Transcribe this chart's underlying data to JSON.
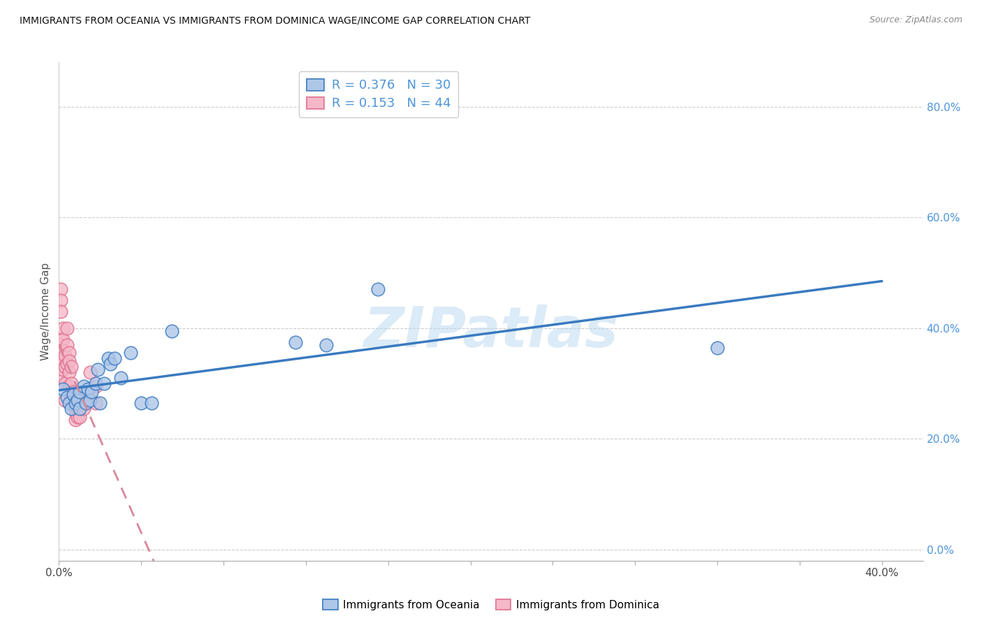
{
  "title": "IMMIGRANTS FROM OCEANIA VS IMMIGRANTS FROM DOMINICA WAGE/INCOME GAP CORRELATION CHART",
  "source": "Source: ZipAtlas.com",
  "ylabel": "Wage/Income Gap",
  "xlim": [
    0.0,
    0.42
  ],
  "ylim": [
    -0.02,
    0.88
  ],
  "x_ticks": [
    0.0,
    0.04,
    0.08,
    0.12,
    0.16,
    0.2,
    0.24,
    0.28,
    0.32,
    0.36,
    0.4
  ],
  "x_tick_labels_show": [
    0.0,
    0.4
  ],
  "y_ticks_right": [
    0.0,
    0.2,
    0.4,
    0.6,
    0.8
  ],
  "y_tick_labels_right": [
    "0.0%",
    "20.0%",
    "40.0%",
    "60.0%",
    "80.0%"
  ],
  "oceania_R": 0.376,
  "oceania_N": 30,
  "dominica_R": 0.153,
  "dominica_N": 44,
  "oceania_color": "#aec6e8",
  "dominica_color": "#f4b8c8",
  "trend_oceania_color": "#3a7abf",
  "trend_dominica_color": "#d9879a",
  "watermark": "ZIPatlas",
  "legend_oceania": "Immigrants from Oceania",
  "legend_dominica": "Immigrants from Dominica",
  "oceania_x": [
    0.002,
    0.004,
    0.005,
    0.006,
    0.007,
    0.008,
    0.009,
    0.01,
    0.01,
    0.012,
    0.013,
    0.014,
    0.015,
    0.016,
    0.018,
    0.019,
    0.02,
    0.022,
    0.024,
    0.025,
    0.027,
    0.03,
    0.035,
    0.04,
    0.045,
    0.055,
    0.115,
    0.13,
    0.155,
    0.32
  ],
  "oceania_y": [
    0.29,
    0.275,
    0.265,
    0.255,
    0.28,
    0.265,
    0.27,
    0.285,
    0.255,
    0.295,
    0.265,
    0.29,
    0.27,
    0.285,
    0.3,
    0.325,
    0.265,
    0.3,
    0.345,
    0.335,
    0.345,
    0.31,
    0.355,
    0.265,
    0.265,
    0.395,
    0.375,
    0.37,
    0.47,
    0.365
  ],
  "dominica_x": [
    0.001,
    0.001,
    0.001,
    0.001,
    0.001,
    0.001,
    0.001,
    0.002,
    0.002,
    0.002,
    0.002,
    0.002,
    0.003,
    0.003,
    0.003,
    0.003,
    0.004,
    0.004,
    0.004,
    0.005,
    0.005,
    0.005,
    0.005,
    0.006,
    0.006,
    0.006,
    0.007,
    0.007,
    0.008,
    0.008,
    0.008,
    0.008,
    0.009,
    0.009,
    0.009,
    0.01,
    0.01,
    0.01,
    0.012,
    0.012,
    0.014,
    0.015,
    0.018,
    0.018
  ],
  "dominica_y": [
    0.47,
    0.45,
    0.43,
    0.38,
    0.37,
    0.35,
    0.31,
    0.4,
    0.38,
    0.36,
    0.34,
    0.325,
    0.35,
    0.33,
    0.3,
    0.27,
    0.4,
    0.37,
    0.335,
    0.355,
    0.34,
    0.32,
    0.295,
    0.33,
    0.3,
    0.275,
    0.285,
    0.27,
    0.27,
    0.26,
    0.25,
    0.235,
    0.265,
    0.255,
    0.24,
    0.275,
    0.26,
    0.24,
    0.27,
    0.255,
    0.27,
    0.32,
    0.295,
    0.265
  ]
}
